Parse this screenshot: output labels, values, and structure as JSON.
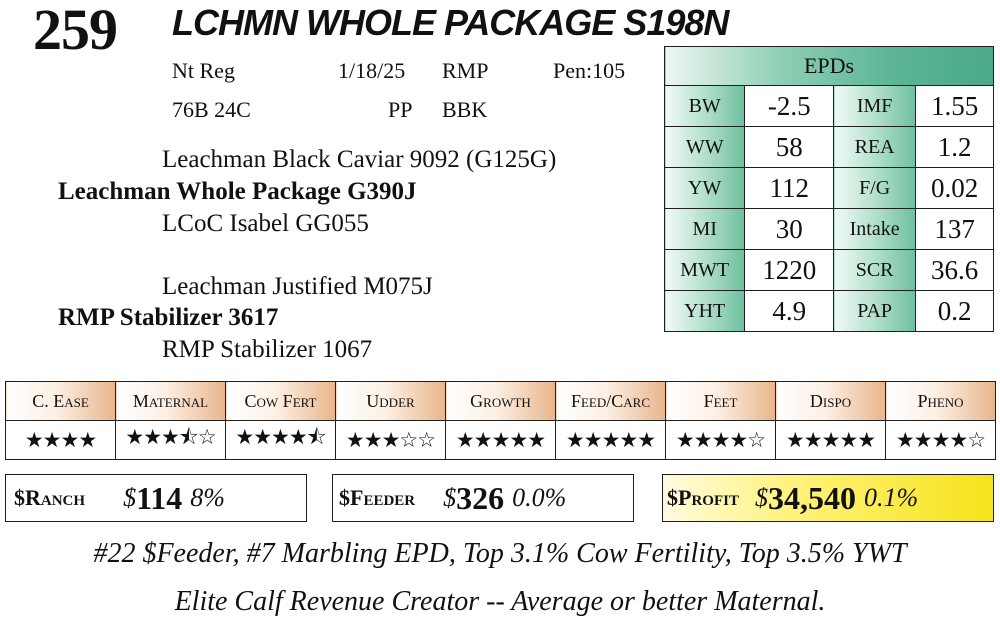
{
  "lot": "259",
  "animal_name": "LCHMN WHOLE PACKAGE S198N",
  "registration": {
    "reg": "Nt Reg",
    "date": "1/18/25",
    "breeder": "RMP",
    "pen": "Pen:105",
    "tag": "76B 24C",
    "pp": "PP",
    "color": "BBK"
  },
  "pedigree": {
    "sire_sire": "Leachman Black Caviar 9092 (G125G)",
    "sire": "Leachman Whole Package G390J",
    "sire_dam": "LCoC Isabel GG055",
    "dam_sire": "Leachman Justified M075J",
    "dam": "RMP Stabilizer 3617",
    "dam_dam": "RMP Stabilizer 1067"
  },
  "epds": {
    "title": "EPDs",
    "rows": [
      {
        "l1": "BW",
        "v1": "-2.5",
        "l2": "IMF",
        "v2": "1.55"
      },
      {
        "l1": "WW",
        "v1": "58",
        "l2": "REA",
        "v2": "1.2"
      },
      {
        "l1": "YW",
        "v1": "112",
        "l2": "F/G",
        "v2": "0.02"
      },
      {
        "l1": "MI",
        "v1": "30",
        "l2": "Intake",
        "v2": "137"
      },
      {
        "l1": "MWT",
        "v1": "1220",
        "l2": "SCR",
        "v2": "36.6"
      },
      {
        "l1": "YHT",
        "v1": "4.9",
        "l2": "PAP",
        "v2": "0.2"
      }
    ]
  },
  "traits": [
    {
      "name": "C. Ease",
      "stars": "★★★★"
    },
    {
      "name": "Maternal",
      "stars": "★★★⯪☆"
    },
    {
      "name": "Cow Fert",
      "stars": "★★★★⯪"
    },
    {
      "name": "Udder",
      "stars": "★★★☆☆"
    },
    {
      "name": "Growth",
      "stars": "★★★★★"
    },
    {
      "name": "Feed/Carc",
      "stars": "★★★★★"
    },
    {
      "name": "Feet",
      "stars": "★★★★☆"
    },
    {
      "name": "Dispo",
      "stars": "★★★★★"
    },
    {
      "name": "Pheno",
      "stars": "★★★★☆"
    }
  ],
  "indexes": {
    "ranch": {
      "name": "$Ranch",
      "dollar": "$",
      "value": "114",
      "pct": "8%"
    },
    "feeder": {
      "name": "$Feeder",
      "dollar": "$",
      "value": "326",
      "pct": "0.0%"
    },
    "profit": {
      "name": "$Profit",
      "dollar": "$",
      "value": "34,540",
      "pct": "0.1%"
    }
  },
  "comments": [
    "#22 $Feeder, #7 Marbling EPD, Top 3.1% Cow Fertility, Top 3.5% YWT",
    "Elite Calf Revenue Creator -- Average or better Maternal."
  ]
}
